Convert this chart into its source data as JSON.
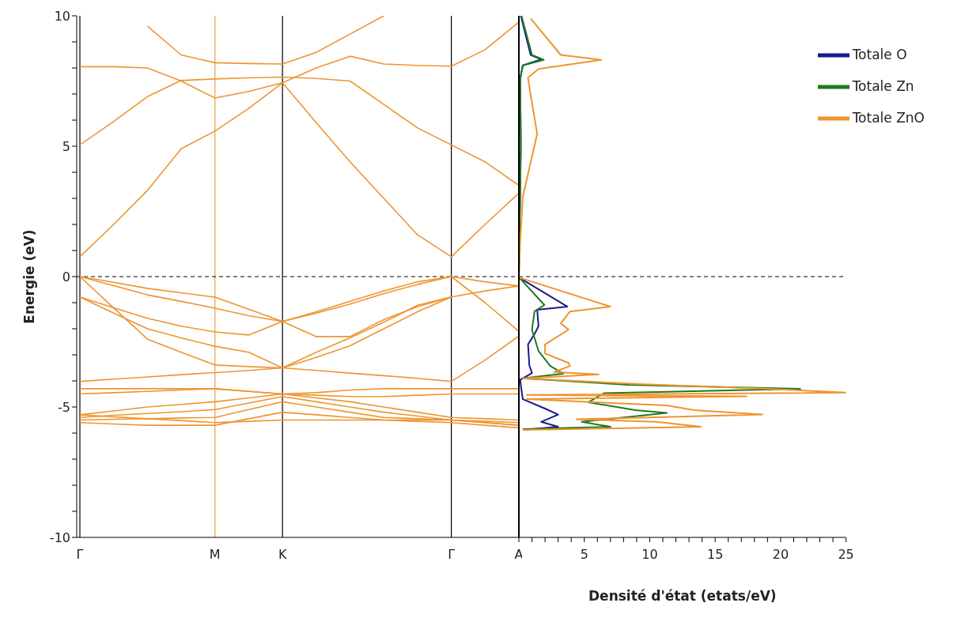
{
  "chart_data": [
    {
      "type": "line",
      "ylabel": "Energie (eV)",
      "ylim": [
        -10,
        10
      ],
      "categories": [
        "Γ",
        null,
        null,
        null,
        "M",
        null,
        "K",
        null,
        null,
        null,
        null,
        "Γ",
        null,
        "A"
      ],
      "yticks": [
        -10,
        {
          "value": -9,
          "label": null
        },
        {
          "value": -8,
          "label": null
        },
        {
          "value": -7,
          "label": null
        },
        {
          "value": -6,
          "label": null
        },
        -5,
        {
          "value": -4,
          "label": null
        },
        {
          "value": -3,
          "label": null
        },
        {
          "value": -2,
          "label": null
        },
        {
          "value": -1,
          "label": null
        },
        0,
        {
          "value": 1,
          "label": null
        },
        {
          "value": 2,
          "label": null
        },
        {
          "value": 3,
          "label": null
        },
        {
          "value": 4,
          "label": null
        },
        5,
        {
          "value": 6,
          "label": null
        },
        {
          "value": 7,
          "label": null
        },
        {
          "value": 8,
          "label": null
        },
        {
          "value": 9,
          "label": null
        },
        10
      ],
      "ref_lines": [
        {
          "axis": "x",
          "value": "M",
          "color": "#e8a33c"
        },
        {
          "axis": "x",
          "value": "K",
          "color": "#000000"
        },
        {
          "axis": "x",
          "value": "Γ",
          "color": "#000000"
        },
        {
          "axis": "y",
          "value": 0,
          "color": "#000000",
          "line_style": "dashed"
        }
      ],
      "series": [
        {
          "color": "#ef9430",
          "values": [
            0.76,
            2.0,
            3.3,
            4.9,
            5.58,
            6.45,
            7.43,
            5.9,
            4.4,
            3.0,
            1.6,
            0.76,
            2.0,
            3.2
          ]
        },
        {
          "color": "#ef9430",
          "values": [
            5.05,
            5.95,
            6.9,
            7.52,
            7.58,
            7.62,
            7.65,
            7.6,
            7.5,
            6.6,
            5.7,
            5.05,
            4.4,
            3.5
          ]
        },
        {
          "color": "#ef9430",
          "values": [
            8.05,
            8.05,
            8.0,
            7.5,
            6.85,
            7.1,
            7.43,
            8.0,
            8.45,
            8.15,
            8.1,
            8.07,
            8.7,
            9.76
          ]
        },
        {
          "color": "#ef9430",
          "values": [
            null,
            null,
            9.6,
            8.5,
            8.2,
            8.17,
            8.15,
            8.6,
            9.3,
            10,
            null,
            null,
            null,
            null
          ]
        },
        {
          "color": "#ef9430",
          "values": [
            0,
            -0.22,
            -0.45,
            -0.62,
            -0.79,
            -1.25,
            -1.72,
            -1.35,
            -0.95,
            -0.55,
            -0.2,
            0,
            -0.2,
            -0.36
          ]
        },
        {
          "color": "#ef9430",
          "values": [
            0,
            -0.35,
            -0.7,
            -0.95,
            -1.21,
            -1.5,
            -1.72,
            -1.4,
            -1.05,
            -0.65,
            -0.3,
            0,
            -1.0,
            -2.1
          ]
        },
        {
          "color": "#ef9430",
          "values": [
            -0.78,
            -1.2,
            -1.6,
            -1.9,
            -2.12,
            -2.24,
            -1.72,
            -2.3,
            -2.3,
            -1.65,
            -1.15,
            -0.78,
            -0.55,
            -0.36
          ]
        },
        {
          "color": "#ef9430",
          "values": [
            -0.78,
            -1.4,
            -2.0,
            -2.35,
            -2.67,
            -2.9,
            -3.5,
            -2.9,
            -2.35,
            -1.75,
            -1.1,
            -0.78,
            null,
            null
          ]
        },
        {
          "color": "#ef9430",
          "values": [
            0,
            -1.2,
            -2.4,
            -2.9,
            -3.39,
            -3.45,
            -3.5,
            -3.1,
            -2.65,
            -2.0,
            -1.35,
            -0.78,
            null,
            null
          ]
        },
        {
          "color": "#ef9430",
          "values": [
            -4.02,
            -3.93,
            -3.85,
            -3.76,
            -3.68,
            -3.6,
            -3.5,
            -3.6,
            -3.7,
            -3.8,
            -3.9,
            -4.02,
            -3.2,
            -2.28
          ]
        },
        {
          "color": "#ef9430",
          "values": [
            -4.3,
            -4.3,
            -4.3,
            -4.3,
            -4.3,
            -4.4,
            -4.5,
            -4.45,
            -4.35,
            -4.3,
            -4.3,
            -4.3,
            -4.3,
            -4.3
          ]
        },
        {
          "color": "#ef9430",
          "values": [
            -4.5,
            -4.45,
            -4.4,
            -4.35,
            -4.3,
            -4.4,
            -4.5,
            -4.55,
            -4.6,
            -4.6,
            -4.55,
            -4.5,
            -4.5,
            -4.5
          ]
        },
        {
          "color": "#ef9430",
          "values": [
            -5.3,
            -5.15,
            -5.0,
            -4.9,
            -4.8,
            -4.65,
            -4.5,
            -4.65,
            -4.8,
            -5.0,
            -5.2,
            -5.4,
            -5.45,
            -5.5
          ]
        },
        {
          "color": "#ef9430",
          "values": [
            -5.4,
            -5.32,
            -5.25,
            -5.18,
            -5.1,
            -4.85,
            -4.6,
            -4.8,
            -5.0,
            -5.2,
            -5.35,
            -5.5,
            -5.55,
            -5.6
          ]
        },
        {
          "color": "#ef9430",
          "values": [
            -5.5,
            -5.47,
            -5.45,
            -5.42,
            -5.4,
            -5.1,
            -4.8,
            -5.0,
            -5.2,
            -5.4,
            -5.45,
            -5.5,
            -5.6,
            -5.7
          ]
        },
        {
          "color": "#ef9430",
          "values": [
            -5.6,
            -5.65,
            -5.7,
            -5.7,
            -5.7,
            -5.45,
            -5.2,
            -5.3,
            -5.4,
            -5.5,
            -5.55,
            -5.6,
            -5.7,
            -5.8
          ]
        },
        {
          "color": "#ef9430",
          "values": [
            -5.3,
            -5.38,
            -5.45,
            -5.52,
            -5.6,
            -5.55,
            -5.5,
            -5.5,
            -5.5,
            -5.5,
            -5.5,
            -5.5,
            -5.6,
            -5.7
          ]
        }
      ]
    },
    {
      "type": "line",
      "xlabel": "Densité d'état (etats/eV)",
      "xlim": [
        0,
        25
      ],
      "ylim": [
        -10,
        10
      ],
      "tick_labels": "x",
      "legend": "top right",
      "xticks": [
        {
          "value": 0,
          "label": null
        },
        {
          "value": 1,
          "label": null
        },
        {
          "value": 2,
          "label": null
        },
        {
          "value": 3,
          "label": null
        },
        {
          "value": 4,
          "label": null
        },
        5,
        {
          "value": 6,
          "label": null
        },
        {
          "value": 7,
          "label": null
        },
        {
          "value": 8,
          "label": null
        },
        {
          "value": 9,
          "label": null
        },
        10,
        {
          "value": 11,
          "label": null
        },
        {
          "value": 12,
          "label": null
        },
        {
          "value": 13,
          "label": null
        },
        {
          "value": 14,
          "label": null
        },
        15,
        {
          "value": 16,
          "label": null
        },
        {
          "value": 17,
          "label": null
        },
        {
          "value": 18,
          "label": null
        },
        {
          "value": 19,
          "label": null
        },
        20,
        {
          "value": 21,
          "label": null
        },
        {
          "value": 22,
          "label": null
        },
        {
          "value": 23,
          "label": null
        },
        {
          "value": 24,
          "label": null
        },
        25
      ],
      "ref_lines": [
        {
          "axis": "y",
          "value": 0,
          "color": "#000000",
          "line_style": "dashed"
        }
      ],
      "series": [
        {
          "name": "Totale O",
          "color": "#1a1a8c",
          "x": [
            0.15,
            0.9,
            1.7,
            0.3,
            0.1,
            0.15,
            0,
            0.05,
            3.7,
            1.4,
            1.5,
            1.2,
            0.7,
            0.8,
            1.0,
            0.1,
            0.2,
            0.3,
            2.0,
            3.0,
            1.7,
            3.0,
            0.3
          ],
          "values": [
            10,
            8.5,
            8.33,
            8.1,
            7.6,
            5,
            0,
            -0.05,
            -1.15,
            -1.27,
            -1.9,
            -2.2,
            -2.6,
            -3.4,
            -3.7,
            -3.96,
            -4.36,
            -4.7,
            -5.06,
            -5.29,
            -5.57,
            -5.76,
            -5.88
          ]
        },
        {
          "name": "Totale Zn",
          "color": "#1f7a1f",
          "x": [
            0.2,
            1.0,
            1.9,
            0.3,
            0.1,
            0.15,
            0,
            0.05,
            1.95,
            1.2,
            1.0,
            1.5,
            2.4,
            3.4,
            0.3,
            8.4,
            21.5,
            6.5,
            5.3,
            8.9,
            11.3,
            4.8,
            7.0,
            0.3
          ],
          "values": [
            10,
            8.5,
            8.31,
            8.1,
            7.58,
            5,
            0,
            -0.05,
            -1.09,
            -1.33,
            -2.03,
            -2.85,
            -3.43,
            -3.72,
            -3.9,
            -4.15,
            -4.3,
            -4.47,
            -4.82,
            -5.12,
            -5.23,
            -5.57,
            -5.76,
            -5.85
          ]
        },
        {
          "name": "Totale ZnO",
          "color": "#ef9430",
          "x": [
            0.9,
            3.2,
            6.3,
            1.5,
            0.7,
            0.8,
            1.4,
            0.3,
            0.1,
            0,
            0.1,
            7.0,
            3.9,
            3.2,
            3.8,
            2.0,
            2.0,
            3.8,
            3.9,
            2.7,
            6.1,
            0.3,
            9.6,
            19.1,
            25,
            0.6,
            17.4,
            0.6,
            11.3,
            13.4,
            18.6,
            4.4,
            10.5,
            13.9,
            0.3
          ],
          "values": [
            9.9,
            8.5,
            8.31,
            7.96,
            7.63,
            7.27,
            5.48,
            3.06,
            1.3,
            0.1,
            -0.05,
            -1.15,
            -1.34,
            -1.8,
            -2.03,
            -2.6,
            -2.95,
            -3.31,
            -3.43,
            -3.66,
            -3.75,
            -3.9,
            -4.13,
            -4.3,
            -4.45,
            -4.54,
            -4.59,
            -4.7,
            -4.94,
            -5.12,
            -5.29,
            -5.47,
            -5.57,
            -5.76,
            -5.88
          ]
        }
      ]
    }
  ]
}
